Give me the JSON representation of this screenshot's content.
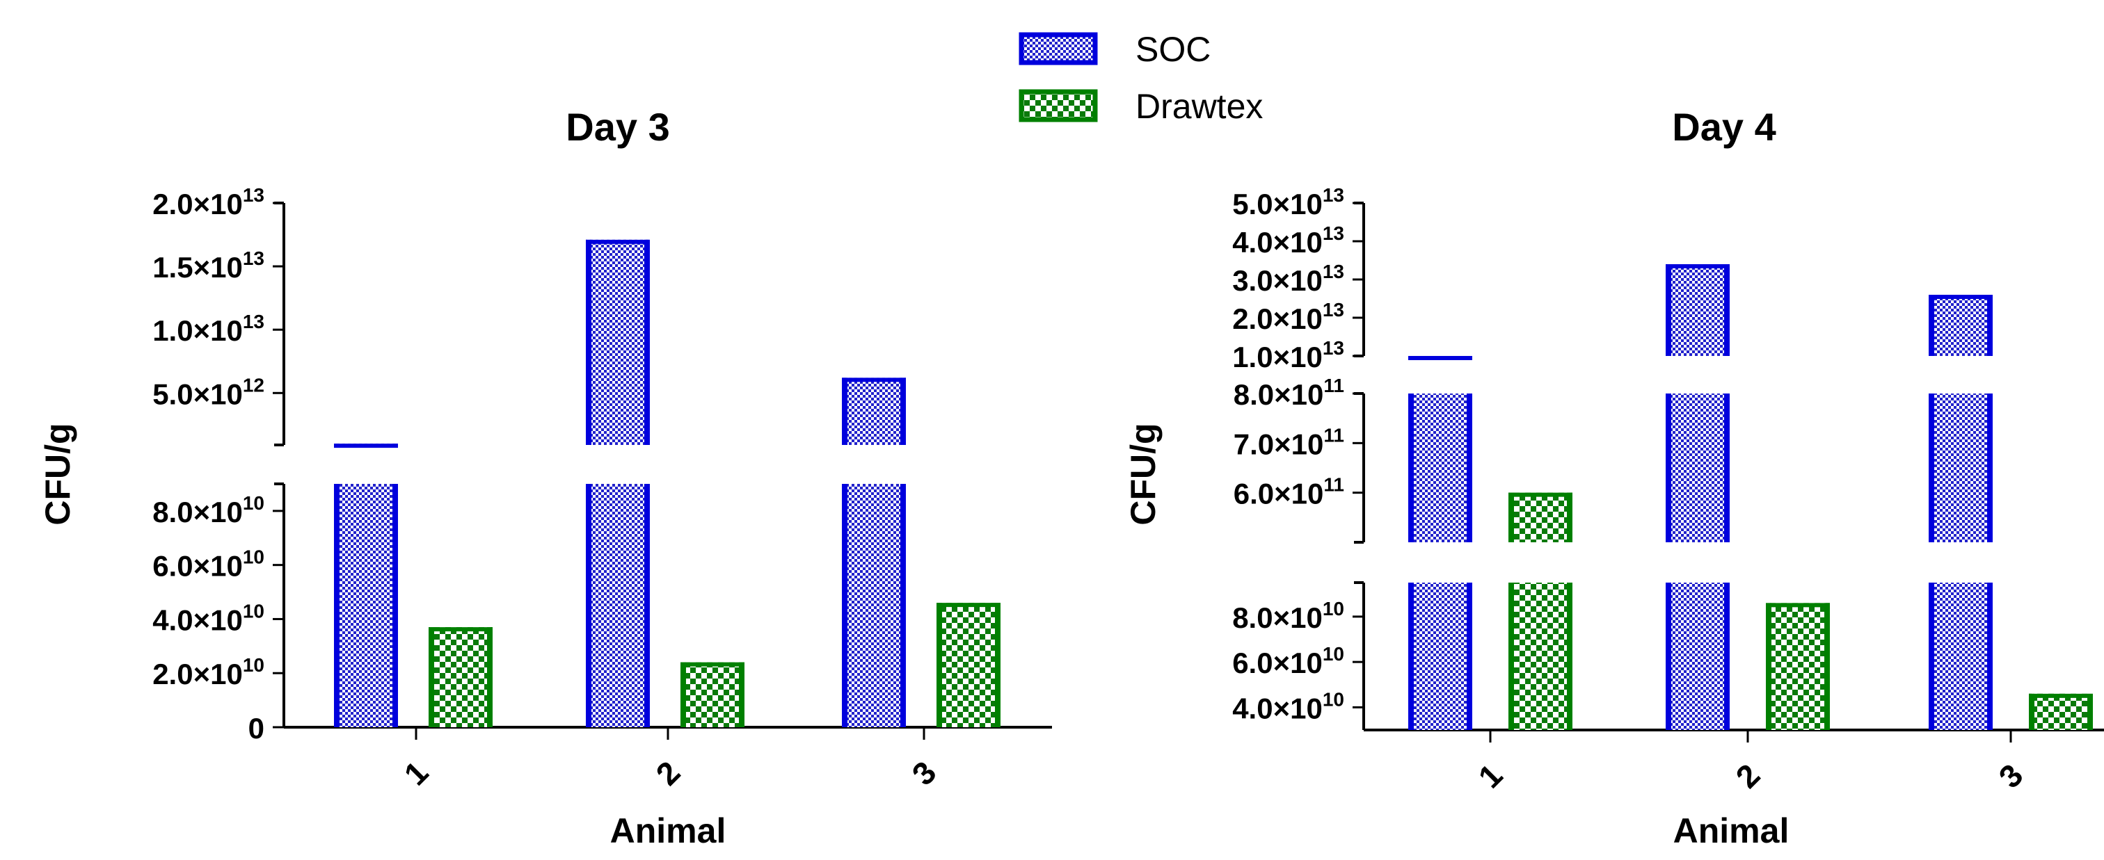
{
  "legend": {
    "placement": "top-center",
    "items": [
      {
        "label": "SOC",
        "color": "#0000dd",
        "pattern": "fine-checker"
      },
      {
        "label": "Drawtex",
        "color": "#008000",
        "pattern": "coarse-checker"
      }
    ]
  },
  "chart_data": [
    {
      "type": "bar",
      "title": "Day 3",
      "xlabel": "Animal",
      "ylabel": "CFU/g",
      "categories": [
        "1",
        "2",
        "3"
      ],
      "axis_break": true,
      "series": [
        {
          "name": "SOC",
          "values": [
            1000000000000.0,
            17100000000000.0,
            6200000000000.0
          ]
        },
        {
          "name": "Drawtex",
          "values": [
            37000000000.0,
            24000000000.0,
            46000000000.0
          ]
        }
      ],
      "ylim": [
        0,
        20000000000000.0
      ],
      "segments": [
        {
          "range": [
            0,
            90000000000.0
          ],
          "ticks": [
            {
              "v": 0,
              "mant": "0",
              "exp": ""
            },
            {
              "v": 20000000000.0,
              "mant": "2.0×10",
              "exp": "10"
            },
            {
              "v": 40000000000.0,
              "mant": "4.0×10",
              "exp": "10"
            },
            {
              "v": 60000000000.0,
              "mant": "6.0×10",
              "exp": "10"
            },
            {
              "v": 80000000000.0,
              "mant": "8.0×10",
              "exp": "10"
            }
          ]
        },
        {
          "range": [
            900000000000.0,
            20000000000000.0
          ],
          "ticks": [
            {
              "v": 5000000000000.0,
              "mant": "5.0×10",
              "exp": "12"
            },
            {
              "v": 10000000000000.0,
              "mant": "1.0×10",
              "exp": "13"
            },
            {
              "v": 15000000000000.0,
              "mant": "1.5×10",
              "exp": "13"
            },
            {
              "v": 20000000000000.0,
              "mant": "2.0×10",
              "exp": "13"
            }
          ]
        }
      ]
    },
    {
      "type": "bar",
      "title": "Day 4",
      "xlabel": "Animal",
      "ylabel": "CFU/g",
      "categories": [
        "1",
        "2",
        "3"
      ],
      "axis_break": true,
      "series": [
        {
          "name": "SOC",
          "values": [
            10000000000000.0,
            34000000000000.0,
            26000000000000.0
          ]
        },
        {
          "name": "Drawtex",
          "values": [
            600000000000.0,
            86000000000.0,
            46000000000.0
          ]
        }
      ],
      "ylim": [
        30000000000.0,
        50000000000000.0
      ],
      "segments": [
        {
          "range": [
            30000000000.0,
            95000000000.0
          ],
          "ticks": [
            {
              "v": 40000000000.0,
              "mant": "4.0×10",
              "exp": "10"
            },
            {
              "v": 60000000000.0,
              "mant": "6.0×10",
              "exp": "10"
            },
            {
              "v": 80000000000.0,
              "mant": "8.0×10",
              "exp": "10"
            }
          ]
        },
        {
          "range": [
            500000000000.0,
            800000000000.0
          ],
          "ticks": [
            {
              "v": 600000000000.0,
              "mant": "6.0×10",
              "exp": "11"
            },
            {
              "v": 700000000000.0,
              "mant": "7.0×10",
              "exp": "11"
            },
            {
              "v": 800000000000.0,
              "mant": "8.0×10",
              "exp": "11"
            }
          ]
        },
        {
          "range": [
            10000000000000.0,
            50000000000000.0
          ],
          "ticks": [
            {
              "v": 10000000000000.0,
              "mant": "1.0×10",
              "exp": "13"
            },
            {
              "v": 20000000000000.0,
              "mant": "2.0×10",
              "exp": "13"
            },
            {
              "v": 30000000000000.0,
              "mant": "3.0×10",
              "exp": "13"
            },
            {
              "v": 40000000000000.0,
              "mant": "4.0×10",
              "exp": "13"
            },
            {
              "v": 50000000000000.0,
              "mant": "5.0×10",
              "exp": "13"
            }
          ]
        }
      ]
    }
  ]
}
